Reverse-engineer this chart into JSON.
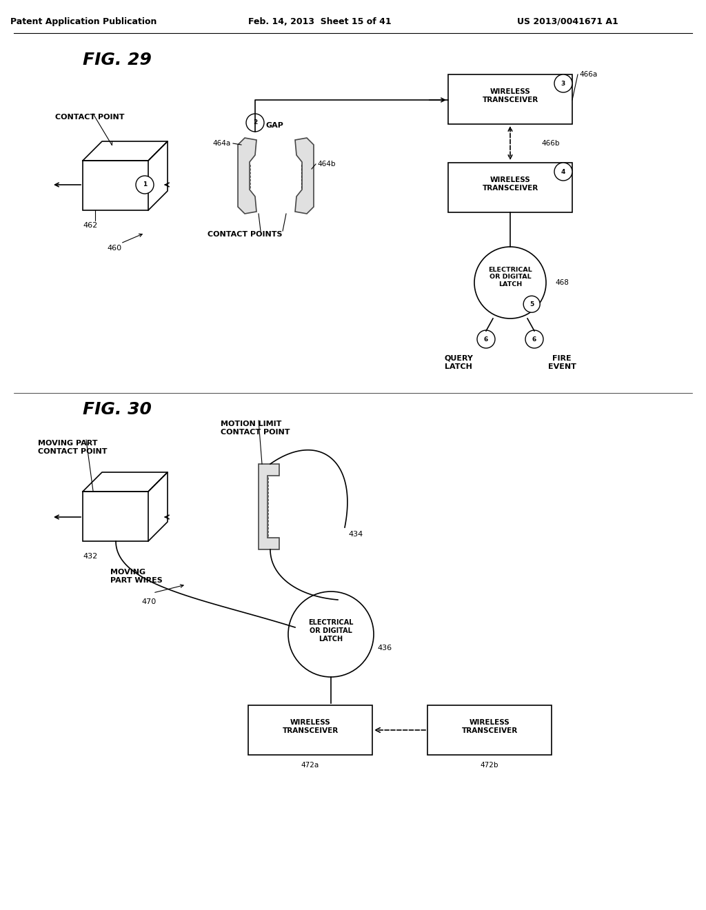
{
  "bg_color": "#ffffff",
  "header_text": "Patent Application Publication",
  "header_date": "Feb. 14, 2013  Sheet 15 of 41",
  "header_patent": "US 2013/0041671 A1",
  "fig29_title": "FIG. 29",
  "fig30_title": "FIG. 30",
  "fig29_labels": {
    "contact_point": "CONTACT POINT",
    "gap": "GAP",
    "contact_points": "CONTACT POINTS",
    "wireless_3": "WIRELESS\nTRANSCEIVER",
    "wireless_4": "WIRELESS\nTRANSCEIVER",
    "latch": "ELECTRICAL\nOR DIGITAL\nLATCH",
    "query_latch": "QUERY\nLATCH",
    "fire_event": "FIRE\nEVENT",
    "ref_460": "460",
    "ref_462": "462",
    "ref_464a": "464a",
    "ref_464b": "464b",
    "ref_466a": "466a",
    "ref_466b": "466b",
    "ref_468": "468",
    "circle1": "1",
    "circle2": "2",
    "circle3": "3",
    "circle4": "4",
    "circle5": "5",
    "circle6a": "6",
    "circle6b": "6"
  },
  "fig30_labels": {
    "moving_part": "MOVING PART\nCONTACT POINT",
    "motion_limit": "MOTION LIMIT\nCONTACT POINT",
    "moving_wires": "MOVING\nPART WIRES",
    "latch": "ELECTRICAL\nOR DIGITAL\nLATCH",
    "wireless_a": "WIRELESS\nTRANSCEIVER",
    "wireless_b": "WIRELESS\nTRANSCEIVER",
    "ref_432": "432",
    "ref_434": "434",
    "ref_436": "436",
    "ref_470": "470",
    "ref_472a": "472a",
    "ref_472b": "472b"
  }
}
